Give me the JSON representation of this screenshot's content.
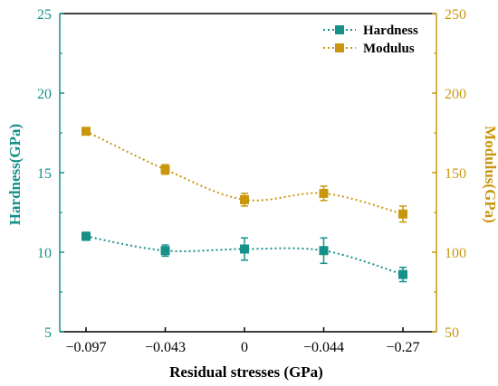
{
  "chart_data": {
    "type": "line",
    "categories": [
      "−0.097",
      "−0.043",
      "0",
      "−0.044",
      "−0.27"
    ],
    "xlabel": "Residual stresses (GPa)",
    "ylabel_left": "Hardness(GPa)",
    "ylabel_right": "Modulus(GPa)",
    "ylim_left": [
      5,
      25
    ],
    "ylim_right": [
      50,
      250
    ],
    "yticks_left": [
      "5",
      "10",
      "15",
      "20",
      "25"
    ],
    "yticks_right": [
      "50",
      "100",
      "150",
      "200",
      "250"
    ],
    "legend_position": "top-right",
    "grid": false,
    "series": [
      {
        "name": "Hardness",
        "axis": "left",
        "color": "#16918a",
        "values": [
          11.0,
          10.1,
          10.2,
          10.1,
          8.6
        ],
        "errors": [
          0.25,
          0.35,
          0.7,
          0.8,
          0.45
        ]
      },
      {
        "name": "Modulus",
        "axis": "right",
        "color": "#c9970e",
        "values": [
          176,
          152,
          133,
          137,
          124
        ],
        "errors": [
          2,
          3,
          4,
          4.5,
          5
        ]
      }
    ]
  }
}
